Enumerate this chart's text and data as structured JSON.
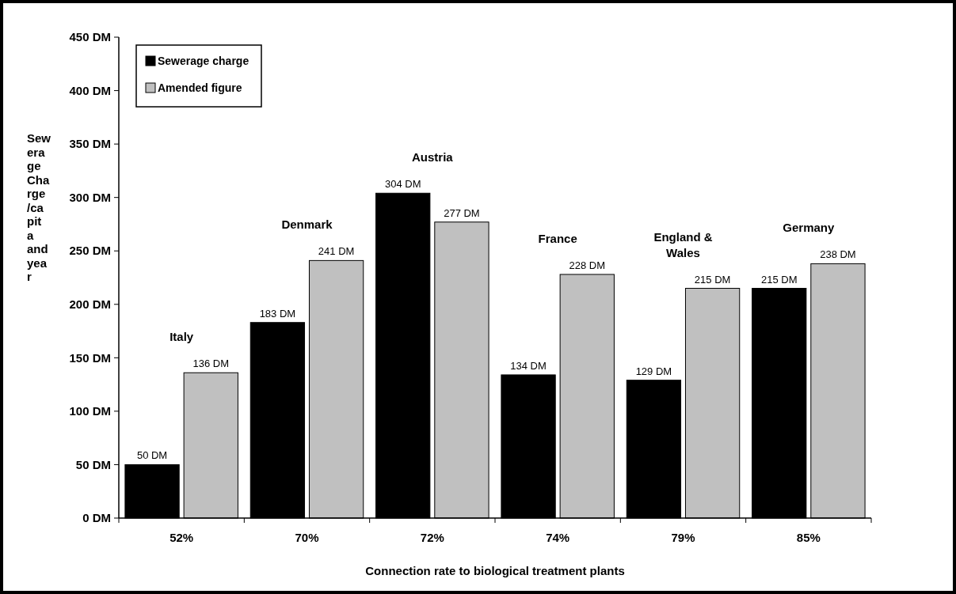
{
  "chart_data": {
    "type": "bar",
    "xlabel": "Connection rate to biological treatment plants",
    "ylabel": "Sewerage Charge /capita and year",
    "categories": [
      "52%",
      "70%",
      "72%",
      "74%",
      "79%",
      "85%"
    ],
    "series": [
      {
        "name": "Sewerage charge",
        "color": "#000000",
        "values": [
          50,
          183,
          304,
          134,
          129,
          215
        ],
        "value_labels": [
          "50 DM",
          "183 DM",
          "304 DM",
          "134 DM",
          "129 DM",
          "215 DM"
        ]
      },
      {
        "name": "Amended figure",
        "color": "#c0c0c0",
        "values": [
          136,
          241,
          277,
          228,
          215,
          238
        ],
        "value_labels": [
          "136 DM",
          "241 DM",
          "277 DM",
          "228 DM",
          "215 DM",
          "238 DM"
        ]
      }
    ],
    "ylim": [
      0,
      450
    ],
    "yticks": [
      {
        "value": 0,
        "label": "0 DM"
      },
      {
        "value": 50,
        "label": "50 DM"
      },
      {
        "value": 100,
        "label": "100 DM"
      },
      {
        "value": 150,
        "label": "150 DM"
      },
      {
        "value": 200,
        "label": "200 DM"
      },
      {
        "value": 250,
        "label": "250 DM"
      },
      {
        "value": 300,
        "label": "300 DM"
      },
      {
        "value": 350,
        "label": "350 DM"
      },
      {
        "value": 400,
        "label": "400 DM"
      },
      {
        "value": 450,
        "label": "450 DM"
      }
    ],
    "annotations": [
      "Italy",
      "Denmark",
      "Austria",
      "France",
      "England & Wales",
      "Germany"
    ],
    "grid": false,
    "legend": "top left"
  }
}
